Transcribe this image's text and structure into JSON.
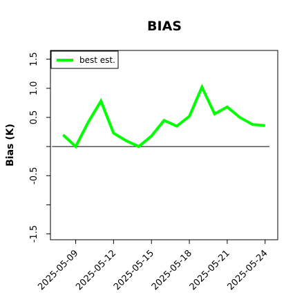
{
  "chart_data": {
    "type": "line",
    "title": "BIAS",
    "xlabel": "",
    "ylabel": "Bias (K)",
    "x": [
      "2025-05-08",
      "2025-05-09",
      "2025-05-10",
      "2025-05-11",
      "2025-05-12",
      "2025-05-13",
      "2025-05-14",
      "2025-05-15",
      "2025-05-16",
      "2025-05-17",
      "2025-05-18",
      "2025-05-19",
      "2025-05-20",
      "2025-05-21",
      "2025-05-22",
      "2025-05-23",
      "2025-05-24"
    ],
    "x_tick_labels": [
      "2025-05-09",
      "2025-05-12",
      "2025-05-15",
      "2025-05-18",
      "2025-05-21",
      "2025-05-24"
    ],
    "x_range": [
      "2025-05-07",
      "2025-05-25"
    ],
    "ylim": [
      -1.6,
      1.65
    ],
    "y_ticks": [
      -1.5,
      -1.0,
      -0.5,
      0.0,
      0.5,
      1.0,
      1.5
    ],
    "y_tick_labels": [
      "-1.5",
      "",
      "-0.5",
      "",
      "0.5",
      "1.0",
      "1.5"
    ],
    "reference_line": 0,
    "legend_position": "top-left",
    "grid": false,
    "series": [
      {
        "name": "best est.",
        "color": "#00ff00",
        "values": [
          0.2,
          0.0,
          0.42,
          0.78,
          0.23,
          0.1,
          0.0,
          0.18,
          0.45,
          0.35,
          0.52,
          1.02,
          0.56,
          0.68,
          0.5,
          0.38,
          0.36
        ]
      }
    ],
    "reference_color": "#000000"
  }
}
